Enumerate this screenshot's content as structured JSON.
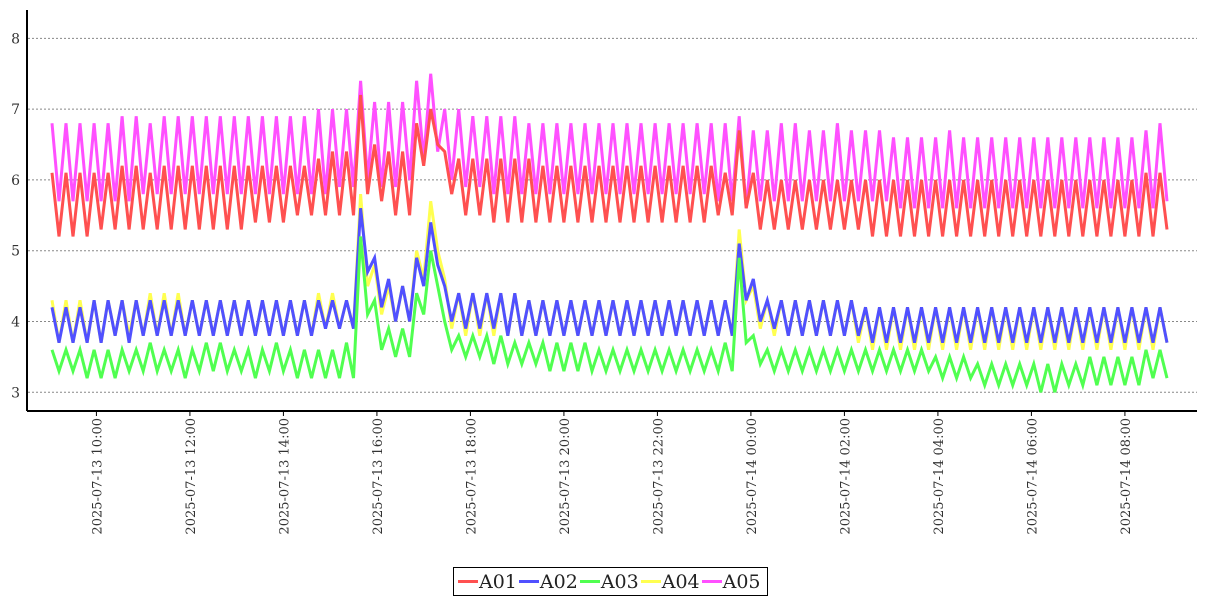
{
  "chart_data": {
    "type": "line",
    "title": "",
    "xlabel": "",
    "ylabel": "",
    "x_start": "2025-07-13 09:03",
    "x_interval_minutes": 9,
    "ylim": [
      2.75,
      8.4
    ],
    "yticks": [
      3,
      4,
      5,
      6,
      7,
      8
    ],
    "xtick_labels": [
      "2025-07-13 10:00",
      "2025-07-13 12:00",
      "2025-07-13 14:00",
      "2025-07-13 16:00",
      "2025-07-13 18:00",
      "2025-07-13 20:00",
      "2025-07-13 22:00",
      "2025-07-14 00:00",
      "2025-07-14 02:00",
      "2025-07-14 04:00",
      "2025-07-14 06:00",
      "2025-07-14 08:00"
    ],
    "xtick_minutes_from_start": [
      57,
      177,
      297,
      417,
      537,
      657,
      777,
      897,
      1017,
      1137,
      1257,
      1377
    ],
    "grid": "horizontal dashed",
    "legend_position": "bottom-center",
    "series": [
      {
        "name": "A05",
        "color": "#ff50ff",
        "values": [
          6.8,
          5.7,
          6.8,
          5.7,
          6.8,
          5.7,
          6.8,
          5.7,
          6.8,
          5.7,
          6.9,
          5.7,
          6.9,
          5.8,
          6.8,
          5.8,
          6.9,
          5.8,
          6.9,
          5.8,
          6.9,
          5.8,
          6.9,
          5.8,
          6.9,
          5.8,
          6.9,
          5.8,
          6.9,
          5.8,
          6.9,
          5.8,
          6.9,
          5.8,
          6.9,
          5.8,
          6.9,
          5.8,
          7.0,
          5.8,
          7.0,
          5.9,
          7.0,
          5.9,
          7.4,
          6.0,
          7.1,
          5.9,
          7.1,
          5.9,
          7.1,
          6.0,
          7.4,
          6.3,
          7.5,
          6.4,
          7.0,
          6.0,
          7.0,
          5.9,
          6.9,
          5.9,
          6.9,
          5.8,
          6.9,
          5.8,
          6.9,
          5.8,
          6.8,
          5.8,
          6.8,
          5.8,
          6.8,
          5.8,
          6.8,
          5.8,
          6.8,
          5.8,
          6.8,
          5.8,
          6.8,
          5.8,
          6.8,
          5.8,
          6.8,
          5.8,
          6.8,
          5.8,
          6.8,
          5.8,
          6.8,
          5.8,
          6.8,
          5.8,
          6.8,
          5.7,
          6.8,
          5.7,
          6.9,
          5.6,
          6.7,
          5.7,
          6.7,
          5.7,
          6.8,
          5.7,
          6.8,
          5.7,
          6.7,
          5.7,
          6.7,
          5.7,
          6.8,
          5.7,
          6.7,
          5.7,
          6.7,
          5.7,
          6.7,
          5.7,
          6.6,
          5.6,
          6.6,
          5.6,
          6.6,
          5.6,
          6.6,
          5.6,
          6.7,
          5.6,
          6.6,
          5.6,
          6.6,
          5.6,
          6.6,
          5.6,
          6.6,
          5.6,
          6.6,
          5.6,
          6.6,
          5.6,
          6.6,
          5.6,
          6.6,
          5.6,
          6.6,
          5.6,
          6.6,
          5.6,
          6.6,
          5.6,
          6.6,
          5.6,
          6.6,
          5.6,
          6.7,
          5.6,
          6.8,
          5.7
        ]
      },
      {
        "name": "A01",
        "color": "#ff5050",
        "values": [
          6.1,
          5.2,
          6.1,
          5.2,
          6.1,
          5.2,
          6.1,
          5.3,
          6.1,
          5.3,
          6.2,
          5.3,
          6.2,
          5.3,
          6.1,
          5.3,
          6.2,
          5.3,
          6.2,
          5.3,
          6.2,
          5.3,
          6.2,
          5.3,
          6.2,
          5.3,
          6.2,
          5.3,
          6.2,
          5.4,
          6.2,
          5.4,
          6.2,
          5.4,
          6.2,
          5.5,
          6.2,
          5.5,
          6.3,
          5.5,
          6.4,
          5.5,
          6.4,
          5.5,
          7.2,
          5.8,
          6.5,
          5.7,
          6.4,
          5.5,
          6.4,
          5.5,
          6.8,
          6.2,
          7.0,
          6.5,
          6.4,
          5.8,
          6.3,
          5.5,
          6.3,
          5.5,
          6.3,
          5.4,
          6.3,
          5.4,
          6.3,
          5.4,
          6.3,
          5.4,
          6.2,
          5.4,
          6.2,
          5.4,
          6.2,
          5.4,
          6.2,
          5.4,
          6.2,
          5.4,
          6.2,
          5.4,
          6.2,
          5.4,
          6.2,
          5.4,
          6.2,
          5.4,
          6.2,
          5.4,
          6.2,
          5.4,
          6.2,
          5.4,
          6.2,
          5.5,
          6.1,
          5.5,
          6.7,
          5.6,
          6.1,
          5.3,
          6.0,
          5.3,
          6.0,
          5.3,
          6.0,
          5.3,
          6.0,
          5.3,
          6.0,
          5.3,
          6.0,
          5.3,
          6.0,
          5.3,
          6.0,
          5.2,
          6.0,
          5.2,
          6.0,
          5.2,
          6.0,
          5.2,
          6.0,
          5.2,
          6.0,
          5.2,
          6.0,
          5.2,
          6.0,
          5.2,
          6.0,
          5.2,
          6.0,
          5.2,
          6.0,
          5.2,
          6.0,
          5.2,
          6.0,
          5.2,
          6.0,
          5.2,
          6.0,
          5.2,
          6.0,
          5.2,
          6.0,
          5.2,
          6.0,
          5.2,
          6.0,
          5.2,
          6.0,
          5.2,
          6.1,
          5.2,
          6.1,
          5.3
        ]
      },
      {
        "name": "A04",
        "color": "#ffff50",
        "values": [
          4.3,
          3.7,
          4.3,
          3.7,
          4.3,
          3.7,
          4.3,
          3.7,
          4.3,
          3.8,
          4.3,
          3.8,
          4.3,
          3.8,
          4.4,
          3.8,
          4.4,
          3.8,
          4.4,
          3.8,
          4.3,
          3.8,
          4.3,
          3.8,
          4.3,
          3.8,
          4.3,
          3.8,
          4.3,
          3.8,
          4.3,
          3.8,
          4.3,
          3.8,
          4.3,
          3.8,
          4.3,
          3.8,
          4.4,
          3.9,
          4.4,
          3.9,
          4.3,
          3.9,
          5.8,
          4.5,
          4.8,
          4.1,
          4.5,
          4.0,
          4.5,
          4.0,
          5.0,
          4.6,
          5.7,
          5.0,
          4.6,
          3.9,
          4.4,
          3.8,
          4.4,
          3.8,
          4.4,
          3.8,
          4.4,
          3.8,
          4.4,
          3.8,
          4.3,
          3.8,
          4.3,
          3.8,
          4.3,
          3.8,
          4.3,
          3.8,
          4.3,
          3.8,
          4.3,
          3.8,
          4.3,
          3.8,
          4.3,
          3.8,
          4.3,
          3.8,
          4.3,
          3.8,
          4.3,
          3.8,
          4.3,
          3.8,
          4.3,
          3.8,
          4.3,
          3.8,
          4.3,
          3.8,
          5.3,
          4.3,
          4.5,
          3.9,
          4.3,
          3.8,
          4.3,
          3.8,
          4.3,
          3.8,
          4.3,
          3.8,
          4.3,
          3.8,
          4.3,
          3.8,
          4.3,
          3.7,
          4.2,
          3.6,
          4.2,
          3.6,
          4.2,
          3.6,
          4.2,
          3.6,
          4.2,
          3.6,
          4.2,
          3.6,
          4.2,
          3.6,
          4.2,
          3.6,
          4.2,
          3.6,
          4.2,
          3.6,
          4.2,
          3.6,
          4.2,
          3.6,
          4.2,
          3.6,
          4.2,
          3.6,
          4.2,
          3.6,
          4.2,
          3.6,
          4.2,
          3.6,
          4.2,
          3.6,
          4.2,
          3.6,
          4.2,
          3.6,
          4.2,
          3.6,
          4.2,
          3.7
        ]
      },
      {
        "name": "A02",
        "color": "#5050ff",
        "values": [
          4.2,
          3.7,
          4.2,
          3.7,
          4.2,
          3.7,
          4.3,
          3.7,
          4.3,
          3.8,
          4.3,
          3.7,
          4.3,
          3.8,
          4.3,
          3.8,
          4.3,
          3.8,
          4.3,
          3.8,
          4.3,
          3.8,
          4.3,
          3.8,
          4.3,
          3.8,
          4.3,
          3.8,
          4.3,
          3.8,
          4.3,
          3.8,
          4.3,
          3.8,
          4.3,
          3.8,
          4.3,
          3.8,
          4.3,
          3.9,
          4.3,
          3.9,
          4.3,
          3.9,
          5.6,
          4.7,
          4.9,
          4.2,
          4.6,
          4.0,
          4.5,
          4.0,
          4.9,
          4.5,
          5.4,
          4.8,
          4.5,
          4.0,
          4.4,
          3.9,
          4.4,
          3.9,
          4.4,
          3.9,
          4.4,
          3.8,
          4.4,
          3.8,
          4.3,
          3.8,
          4.3,
          3.8,
          4.3,
          3.8,
          4.3,
          3.8,
          4.3,
          3.8,
          4.3,
          3.8,
          4.3,
          3.8,
          4.3,
          3.8,
          4.3,
          3.8,
          4.3,
          3.8,
          4.3,
          3.8,
          4.3,
          3.8,
          4.3,
          3.8,
          4.3,
          3.8,
          4.3,
          3.8,
          5.1,
          4.3,
          4.6,
          4.0,
          4.3,
          3.9,
          4.3,
          3.8,
          4.3,
          3.8,
          4.3,
          3.8,
          4.3,
          3.8,
          4.3,
          3.8,
          4.3,
          3.8,
          4.2,
          3.7,
          4.2,
          3.7,
          4.2,
          3.7,
          4.2,
          3.7,
          4.2,
          3.7,
          4.2,
          3.7,
          4.2,
          3.7,
          4.2,
          3.7,
          4.2,
          3.7,
          4.2,
          3.7,
          4.2,
          3.7,
          4.2,
          3.7,
          4.2,
          3.7,
          4.2,
          3.7,
          4.2,
          3.7,
          4.2,
          3.7,
          4.2,
          3.7,
          4.2,
          3.7,
          4.2,
          3.7,
          4.2,
          3.7,
          4.2,
          3.7,
          4.2,
          3.7
        ]
      },
      {
        "name": "A03",
        "color": "#50ff50",
        "values": [
          3.6,
          3.3,
          3.6,
          3.3,
          3.6,
          3.2,
          3.6,
          3.2,
          3.6,
          3.2,
          3.6,
          3.3,
          3.6,
          3.3,
          3.7,
          3.3,
          3.6,
          3.3,
          3.6,
          3.2,
          3.6,
          3.3,
          3.7,
          3.3,
          3.7,
          3.3,
          3.6,
          3.3,
          3.6,
          3.2,
          3.6,
          3.3,
          3.7,
          3.3,
          3.6,
          3.2,
          3.6,
          3.2,
          3.6,
          3.2,
          3.6,
          3.2,
          3.7,
          3.2,
          5.2,
          4.1,
          4.3,
          3.6,
          3.9,
          3.5,
          3.9,
          3.5,
          4.4,
          4.1,
          5.0,
          4.5,
          4.0,
          3.6,
          3.8,
          3.5,
          3.8,
          3.5,
          3.8,
          3.4,
          3.8,
          3.4,
          3.7,
          3.4,
          3.7,
          3.4,
          3.7,
          3.3,
          3.7,
          3.3,
          3.7,
          3.3,
          3.7,
          3.3,
          3.6,
          3.3,
          3.6,
          3.3,
          3.6,
          3.3,
          3.6,
          3.3,
          3.6,
          3.3,
          3.6,
          3.3,
          3.6,
          3.3,
          3.6,
          3.3,
          3.6,
          3.3,
          3.7,
          3.3,
          4.9,
          3.7,
          3.8,
          3.4,
          3.6,
          3.3,
          3.6,
          3.3,
          3.6,
          3.3,
          3.6,
          3.3,
          3.6,
          3.3,
          3.6,
          3.3,
          3.6,
          3.3,
          3.6,
          3.3,
          3.6,
          3.3,
          3.6,
          3.3,
          3.6,
          3.3,
          3.6,
          3.3,
          3.5,
          3.2,
          3.5,
          3.2,
          3.5,
          3.2,
          3.4,
          3.1,
          3.4,
          3.1,
          3.4,
          3.1,
          3.4,
          3.1,
          3.4,
          3.0,
          3.4,
          3.0,
          3.4,
          3.1,
          3.4,
          3.1,
          3.5,
          3.1,
          3.5,
          3.1,
          3.5,
          3.1,
          3.5,
          3.1,
          3.6,
          3.2,
          3.6,
          3.2
        ]
      }
    ]
  },
  "legend": [
    {
      "label": "A01",
      "color": "#ff5050"
    },
    {
      "label": "A02",
      "color": "#5050ff"
    },
    {
      "label": "A03",
      "color": "#50ff50"
    },
    {
      "label": "A04",
      "color": "#ffff50"
    },
    {
      "label": "A05",
      "color": "#ff50ff"
    }
  ]
}
